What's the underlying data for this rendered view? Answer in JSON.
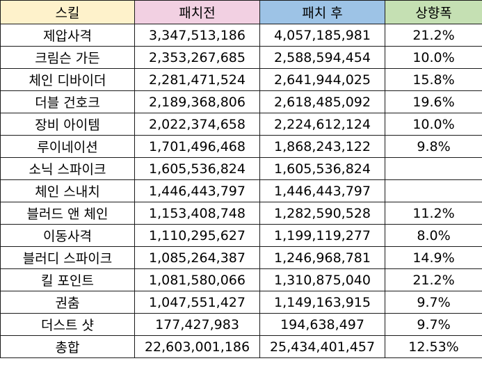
{
  "header": {
    "skill": "스킬",
    "before": "패치전",
    "after": "패치 후",
    "change": "상향폭",
    "colors": {
      "skill": "#fef2cb",
      "before": "#f2d0e2",
      "after": "#9dc3e6",
      "change": "#c5e0b3"
    }
  },
  "rows": [
    {
      "skill": "제압사격",
      "before": "3,347,513,186",
      "after": "4,057,185,981",
      "change": "21.2%"
    },
    {
      "skill": "크림슨 가든",
      "before": "2,353,267,685",
      "after": "2,588,594,454",
      "change": "10.0%"
    },
    {
      "skill": "체인 디바이더",
      "before": "2,281,471,524",
      "after": "2,641,944,025",
      "change": "15.8%"
    },
    {
      "skill": "더블 건호크",
      "before": "2,189,368,806",
      "after": "2,618,485,092",
      "change": "19.6%"
    },
    {
      "skill": "장비 아이템",
      "before": "2,022,374,658",
      "after": "2,224,612,124",
      "change": "10.0%"
    },
    {
      "skill": "루이네이션",
      "before": "1,701,496,468",
      "after": "1,868,243,122",
      "change": "9.8%"
    },
    {
      "skill": "소닉 스파이크",
      "before": "1,605,536,824",
      "after": "1,605,536,824",
      "change": ""
    },
    {
      "skill": "체인 스내치",
      "before": "1,446,443,797",
      "after": "1,446,443,797",
      "change": ""
    },
    {
      "skill": "블러드 앤 체인",
      "before": "1,153,408,748",
      "after": "1,282,590,528",
      "change": "11.2%"
    },
    {
      "skill": "이동사격",
      "before": "1,110,295,627",
      "after": "1,199,119,277",
      "change": "8.0%"
    },
    {
      "skill": "블러디 스파이크",
      "before": "1,085,264,387",
      "after": "1,246,968,781",
      "change": "14.9%"
    },
    {
      "skill": "킬 포인트",
      "before": "1,081,580,066",
      "after": "1,310,875,040",
      "change": "21.2%"
    },
    {
      "skill": "권춤",
      "before": "1,047,551,427",
      "after": "1,149,163,915",
      "change": "9.7%"
    },
    {
      "skill": "더스트 샷",
      "before": "177,427,983",
      "after": "194,638,497",
      "change": "9.7%"
    }
  ],
  "total": {
    "skill": "총합",
    "before": "22,603,001,186",
    "after": "25,434,401,457",
    "change": "12.53%"
  }
}
